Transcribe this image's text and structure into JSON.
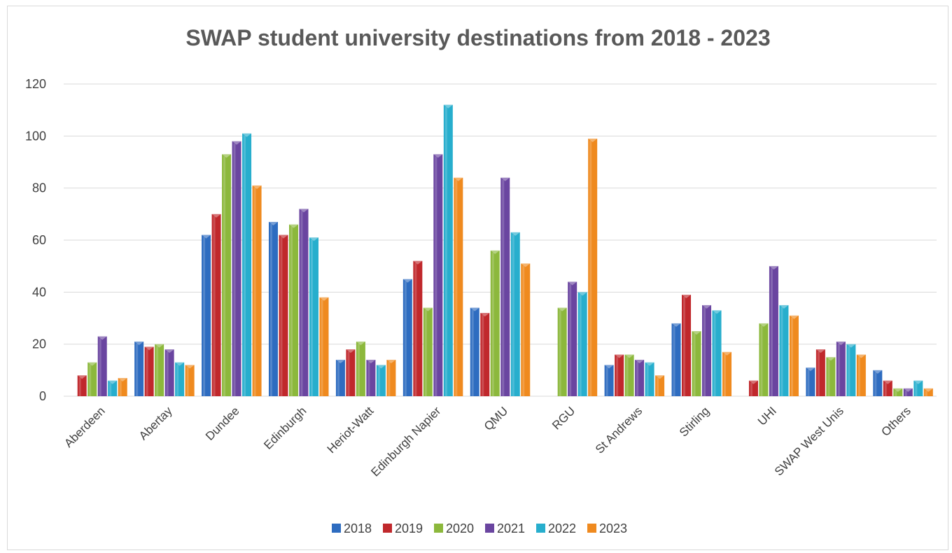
{
  "chart_data": {
    "type": "bar",
    "title": "SWAP student university destinations from 2018 - 2023",
    "xlabel": "",
    "ylabel": "",
    "ylim": [
      0,
      120
    ],
    "yticks": [
      0,
      20,
      40,
      60,
      80,
      100,
      120
    ],
    "ytick_labels": [
      "0",
      "20",
      "40",
      "60",
      "80",
      "100",
      "120"
    ],
    "grid": true,
    "legend_position": "bottom",
    "categories": [
      "Aberdeen",
      "Abertay",
      "Dundee",
      "Edinburgh",
      "Heriot-Watt",
      "Edinburgh Napier",
      "QMU",
      "RGU",
      "St Andrews",
      "Stirling",
      "UHI",
      "SWAP West Unis",
      "Others"
    ],
    "series": [
      {
        "name": "2018",
        "color": "#2e6cc0",
        "values": [
          0,
          21,
          62,
          67,
          14,
          45,
          34,
          0,
          12,
          28,
          0,
          11,
          10
        ]
      },
      {
        "name": "2019",
        "color": "#c0282c",
        "values": [
          8,
          19,
          70,
          62,
          18,
          52,
          32,
          0,
          16,
          39,
          6,
          18,
          6
        ]
      },
      {
        "name": "2020",
        "color": "#8cb83c",
        "values": [
          13,
          20,
          93,
          66,
          21,
          34,
          56,
          34,
          16,
          25,
          28,
          15,
          3
        ]
      },
      {
        "name": "2021",
        "color": "#6a45a0",
        "values": [
          23,
          18,
          98,
          72,
          14,
          93,
          84,
          44,
          14,
          35,
          50,
          21,
          3
        ]
      },
      {
        "name": "2022",
        "color": "#27aecd",
        "values": [
          6,
          13,
          101,
          61,
          12,
          112,
          63,
          40,
          13,
          33,
          35,
          20,
          6
        ]
      },
      {
        "name": "2023",
        "color": "#ef8a1f",
        "values": [
          7,
          12,
          81,
          38,
          14,
          84,
          51,
          99,
          8,
          17,
          31,
          16,
          3
        ]
      }
    ]
  }
}
